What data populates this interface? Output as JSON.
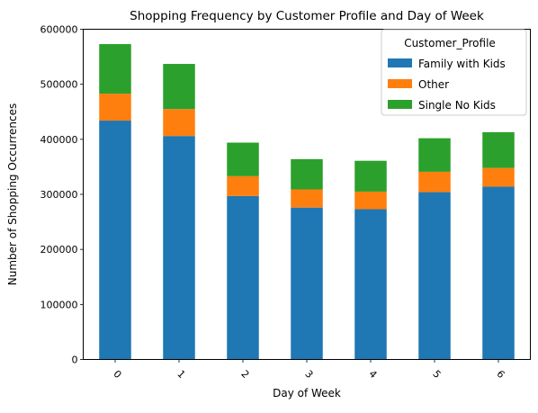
{
  "chart_data": {
    "type": "bar",
    "stacked": true,
    "title": "Shopping Frequency by Customer Profile and Day of Week",
    "xlabel": "Day of Week",
    "ylabel": "Number of Shopping Occurrences",
    "categories": [
      "0",
      "1",
      "2",
      "3",
      "4",
      "5",
      "6"
    ],
    "series": [
      {
        "name": "Family with Kids",
        "color": "#1f77b4",
        "values": [
          434000,
          406000,
          297000,
          276000,
          273000,
          304000,
          314000
        ]
      },
      {
        "name": "Other",
        "color": "#ff7f0e",
        "values": [
          49000,
          49000,
          36000,
          33000,
          32000,
          37000,
          34000
        ]
      },
      {
        "name": "Single No Kids",
        "color": "#2ca02c",
        "values": [
          90000,
          82000,
          61000,
          55000,
          56000,
          61000,
          65000
        ]
      }
    ],
    "ylim": [
      0,
      600000
    ],
    "yticks": [
      "0",
      "100000",
      "200000",
      "300000",
      "400000",
      "500000",
      "600000"
    ],
    "xtick_rotation": 45,
    "grid": false,
    "legend": {
      "title": "Customer_Profile",
      "placement": "top-right"
    }
  }
}
